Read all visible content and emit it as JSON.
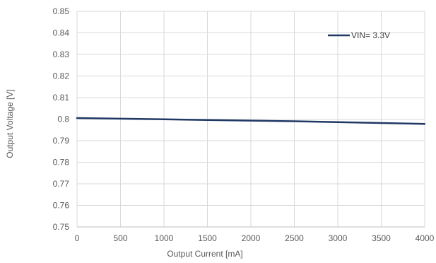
{
  "chart_data": {
    "type": "line",
    "title": "",
    "xlabel": "Output Current [mA]",
    "ylabel": "Output Voltage [V]",
    "xlim": [
      0,
      4000
    ],
    "ylim": [
      0.75,
      0.85
    ],
    "x_ticks": [
      "0",
      "500",
      "1000",
      "1500",
      "2000",
      "2500",
      "3000",
      "3500",
      "4000"
    ],
    "y_ticks": [
      "0.85",
      "0.84",
      "0.83",
      "0.82",
      "0.81",
      "0.8",
      "0.79",
      "0.78",
      "0.77",
      "0.76",
      "0.75"
    ],
    "grid": true,
    "legend_position": "top-right",
    "series": [
      {
        "name": "VIN= 3.3V",
        "color": "#1f3864",
        "x": [
          0,
          500,
          1000,
          1500,
          2000,
          2500,
          3000,
          3500,
          4000
        ],
        "y": [
          0.8005,
          0.8002,
          0.7999,
          0.7996,
          0.7993,
          0.799,
          0.7986,
          0.7982,
          0.7978
        ]
      }
    ]
  }
}
